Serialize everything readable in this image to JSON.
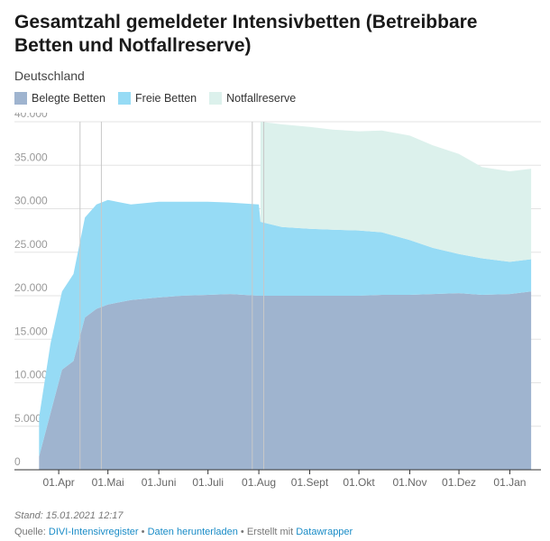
{
  "header": {
    "title": "Gesamtzahl gemeldeter Intensivbetten (Betreibbare Betten und Notfallreserve)",
    "subtitle": "Deutschland"
  },
  "legend": [
    {
      "label": "Belegte Betten",
      "color": "#9fb4cf"
    },
    {
      "label": "Freie Betten",
      "color": "#96dbf5"
    },
    {
      "label": "Notfallreserve",
      "color": "#dcf1ec"
    }
  ],
  "footer": {
    "stand": "Stand: 15.01.2021 12:17",
    "source_prefix": "Quelle:",
    "source_link": "DIVI-Intensivregister",
    "separator": "•",
    "download_link": "Daten herunterladen",
    "created_text": "• Erstellt mit",
    "tool_link": "Datawrapper"
  },
  "chart_data": {
    "type": "area",
    "stacked": true,
    "x": [
      "2020-03-20",
      "2020-03-27",
      "2020-04-03",
      "2020-04-10",
      "2020-04-17",
      "2020-04-24",
      "2020-05-01",
      "2020-05-15",
      "2020-06-01",
      "2020-06-15",
      "2020-07-01",
      "2020-07-15",
      "2020-08-01",
      "2020-08-02",
      "2020-08-15",
      "2020-09-01",
      "2020-09-15",
      "2020-10-01",
      "2020-10-15",
      "2020-11-01",
      "2020-11-15",
      "2020-12-01",
      "2020-12-15",
      "2021-01-01",
      "2021-01-14"
    ],
    "series": [
      {
        "name": "Belegte Betten",
        "values": [
          1500,
          6500,
          11500,
          12500,
          17500,
          18500,
          19000,
          19500,
          19800,
          20000,
          20100,
          20200,
          20000,
          20000,
          20000,
          20000,
          20000,
          20000,
          20100,
          20100,
          20200,
          20300,
          20100,
          20200,
          20500
        ]
      },
      {
        "name": "Freie Betten",
        "values": [
          4500,
          8000,
          9000,
          10000,
          11500,
          12000,
          12000,
          11000,
          11000,
          10800,
          10700,
          10500,
          10500,
          8500,
          7900,
          7700,
          7600,
          7500,
          7200,
          6300,
          5300,
          4500,
          4200,
          3700,
          3700
        ]
      },
      {
        "name": "Notfallreserve",
        "values": [
          0,
          0,
          0,
          0,
          0,
          0,
          0,
          0,
          0,
          0,
          0,
          0,
          0,
          11500,
          11800,
          11700,
          11500,
          11400,
          11700,
          12000,
          11800,
          11500,
          10500,
          10400,
          10400
        ]
      }
    ],
    "x_tick_labels": [
      "01.Apr",
      "01.Mai",
      "01.Juni",
      "01.Juli",
      "01.Aug",
      "01.Sept",
      "01.Okt",
      "01.Nov",
      "01.Dez",
      "01.Jan"
    ],
    "x_tick_dates": [
      "2020-04-01",
      "2020-05-01",
      "2020-06-01",
      "2020-07-01",
      "2020-08-01",
      "2020-09-01",
      "2020-10-01",
      "2020-11-01",
      "2020-12-01",
      "2021-01-01"
    ],
    "y_tick_labels": [
      "0",
      "5.000",
      "10.000",
      "15.000",
      "20.000",
      "25.000",
      "30.000",
      "35.000",
      "40.000"
    ],
    "y_tick_values": [
      0,
      5000,
      10000,
      15000,
      20000,
      25000,
      30000,
      35000,
      40000
    ],
    "xlim": [
      "2020-03-05",
      "2021-01-20"
    ],
    "ylim": [
      0,
      40000
    ],
    "grid": true,
    "vertical_markers": [
      "2020-04-14",
      "2020-04-27",
      "2020-07-28",
      "2020-08-04"
    ]
  }
}
